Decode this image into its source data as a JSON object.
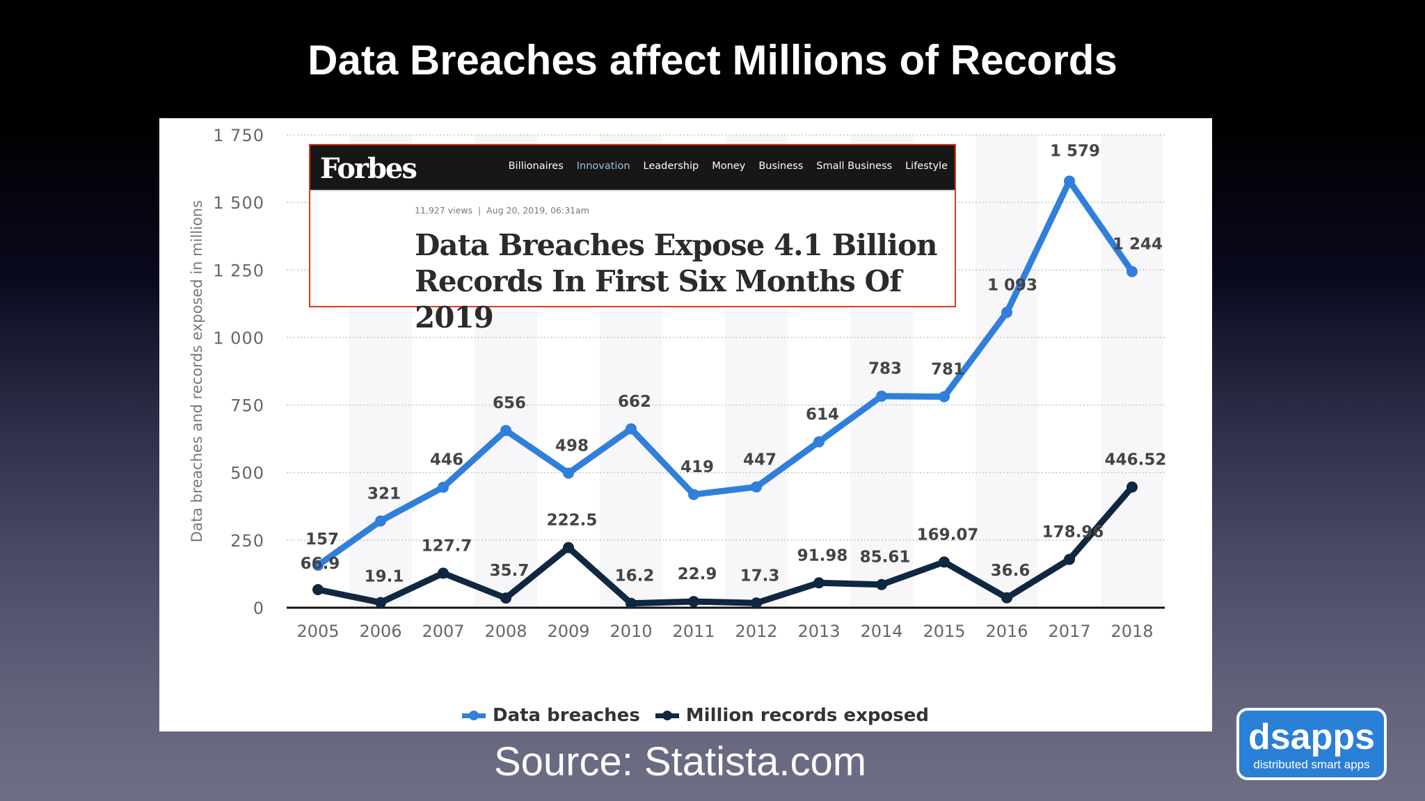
{
  "slide": {
    "title": "Data Breaches affect Millions of Records",
    "source": "Source: Statista.com"
  },
  "forbes": {
    "logo": "Forbes",
    "nav": [
      "Billionaires",
      "Innovation",
      "Leadership",
      "Money",
      "Business",
      "Small Business",
      "Lifestyle"
    ],
    "active_nav": "Innovation",
    "meta": "11,927 views  |  Aug 20, 2019, 06:31am",
    "headline_line1": "Data Breaches Expose 4.1 Billion",
    "headline_line2": "Records In First Six Months Of 2019",
    "border_color": "#e0381c"
  },
  "badge": {
    "name": "dsapps",
    "tagline": "distributed smart apps",
    "color": "#2a7fd6"
  },
  "legend": {
    "items": [
      {
        "label": "Data breaches",
        "color": "#2f7fdb"
      },
      {
        "label": "Million records exposed",
        "color": "#0f2740"
      }
    ]
  },
  "chart_data": {
    "type": "line",
    "title": "",
    "xlabel": "",
    "ylabel": "Data breaches and records exposed in millions",
    "x": [
      "2005",
      "2006",
      "2007",
      "2008",
      "2009",
      "2010",
      "2011",
      "2012",
      "2013",
      "2014",
      "2015",
      "2016",
      "2017",
      "2018"
    ],
    "series": [
      {
        "name": "Data breaches",
        "color": "#2f7fdb",
        "values": [
          157,
          321,
          446,
          656,
          498,
          662,
          419,
          447,
          614,
          783,
          781,
          1093,
          1579,
          1244
        ],
        "labels": [
          "157",
          "321",
          "446",
          "656",
          "498",
          "662",
          "419",
          "447",
          "614",
          "783",
          "781",
          "1 093",
          "1 579",
          "1 244"
        ]
      },
      {
        "name": "Million records exposed",
        "color": "#0f2740",
        "values": [
          66.9,
          19.1,
          127.7,
          35.7,
          222.5,
          16.2,
          22.9,
          17.3,
          91.98,
          85.61,
          169.07,
          36.6,
          178.96,
          446.52
        ],
        "labels": [
          "66.9",
          "19.1",
          "127.7",
          "35.7",
          "222.5",
          "16.2",
          "22.9",
          "17.3",
          "91.98",
          "85.61",
          "169.07",
          "36.6",
          "178.96",
          "446.52"
        ]
      }
    ],
    "yticks": [
      0,
      250,
      500,
      750,
      1000,
      1250,
      1500,
      1750
    ],
    "ytick_labels": [
      "0",
      "250",
      "500",
      "750",
      "1 000",
      "1 250",
      "1 500",
      "1 750"
    ],
    "ylim": [
      0,
      1750
    ],
    "grid": "dotted horizontal",
    "legend_position": "bottom"
  }
}
